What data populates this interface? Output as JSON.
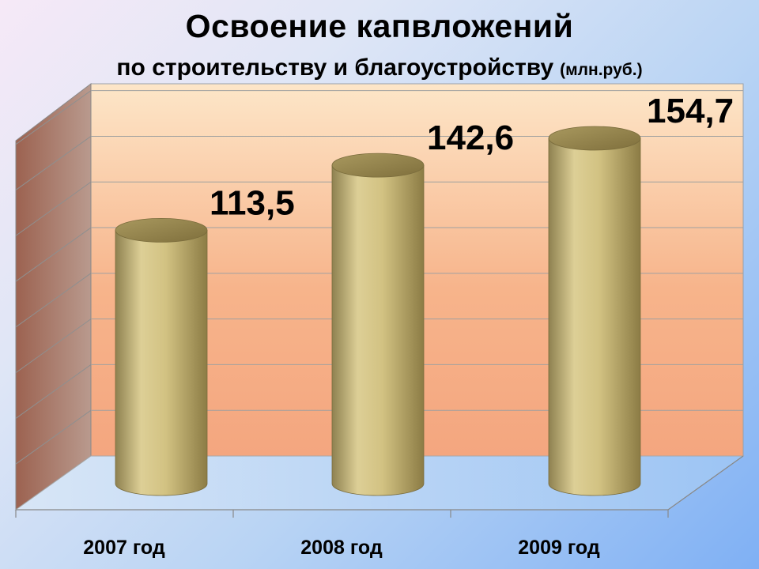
{
  "chart_data": {
    "type": "bar",
    "title": "Освоение капвложений",
    "subtitle": "по строительству и благоустройству",
    "units": "(млн.руб.)",
    "categories": [
      "2007 год",
      "2008 год",
      "2009 год"
    ],
    "values": [
      113.5,
      142.6,
      154.7
    ],
    "value_labels": [
      "113,5",
      "142,6",
      "154,7"
    ],
    "ylim": [
      0,
      170
    ],
    "grid": true,
    "legend": "none",
    "bar_style": "3d-cylinder",
    "colors": {
      "bar": "#c9b878",
      "back_wall_top": "#fde3c4",
      "back_wall_bottom": "#f5a37a",
      "side_wall": "#9a6b5a"
    }
  }
}
